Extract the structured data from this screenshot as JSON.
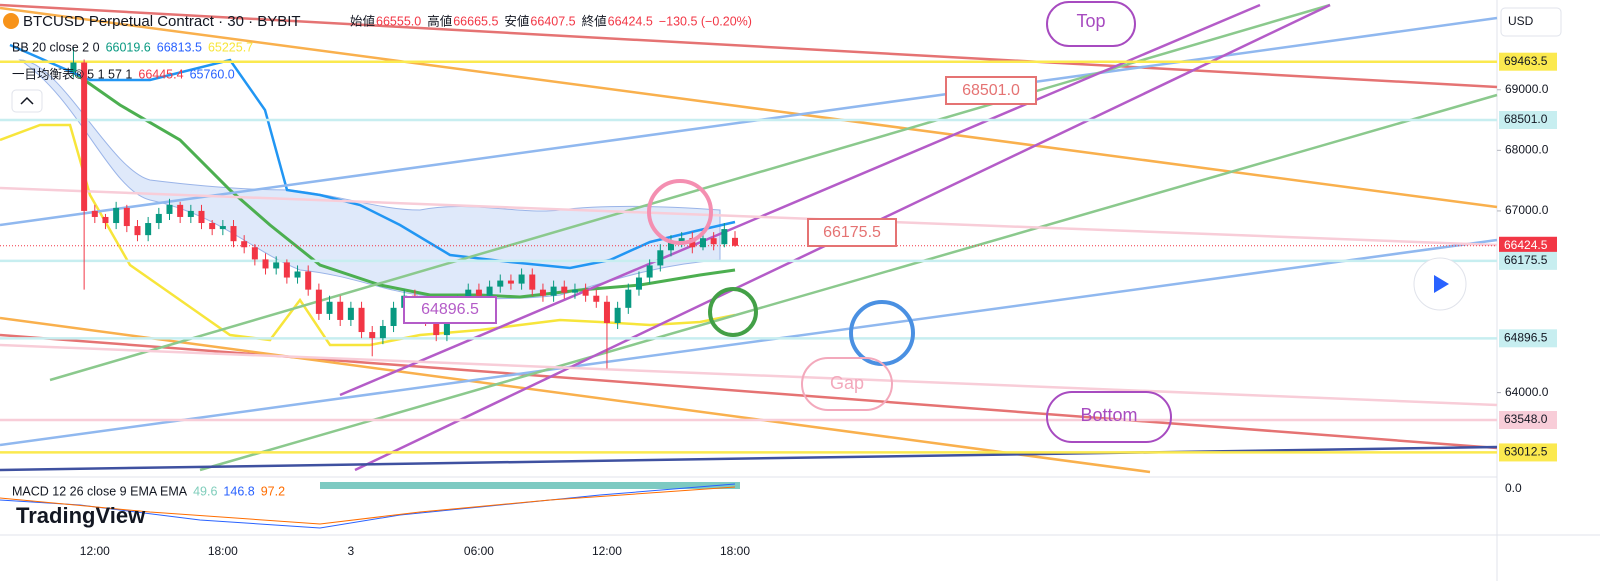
{
  "header": {
    "symbol": "BTCUSD Perpetual Contract · 30 · BYBIT",
    "ohlc": [
      {
        "label": "始値",
        "value": "66555.0"
      },
      {
        "label": "高値",
        "value": "66665.5"
      },
      {
        "label": "安値",
        "value": "66407.5"
      },
      {
        "label": "終値",
        "value": "66424.5"
      }
    ],
    "change": "−130.5 (−0.20%)"
  },
  "indicators": [
    {
      "name": "BB 20 close 2 0",
      "values": [
        "66019.6",
        "66813.5",
        "65225.7"
      ]
    },
    {
      "name": "一目均衡表® 5 1 57 1",
      "values": [
        "66445.4",
        "65760.0"
      ]
    },
    {
      "name": "MACD 12 26 close 9 EMA EMA",
      "values": [
        "49.6",
        "146.8",
        "97.2"
      ]
    }
  ],
  "currency": "USD",
  "macd_zero": "0.0",
  "brand": "TradingView",
  "annotations": {
    "top": "Top",
    "bottom": "Bottom",
    "gap": "Gap",
    "callouts": [
      "68501.0",
      "66175.5",
      "64896.5"
    ]
  },
  "chart_data": {
    "type": "candlestick",
    "categories": [
      null,
      null,
      "12:00",
      null,
      null,
      null,
      null,
      null,
      null,
      null,
      null,
      null,
      null,
      null,
      "18:00",
      null,
      null,
      null,
      null,
      null,
      null,
      null,
      null,
      null,
      null,
      null,
      "3",
      null,
      null,
      null,
      null,
      null,
      null,
      null,
      null,
      null,
      null,
      null,
      "06:00",
      null,
      null,
      null,
      null,
      null,
      null,
      null,
      null,
      null,
      null,
      null,
      "12:00",
      null,
      null,
      null,
      null,
      null,
      null,
      null,
      null,
      null,
      null,
      null,
      "18:00"
    ],
    "open": [
      69300,
      69450,
      67000,
      66900,
      66800,
      67050,
      66750,
      66600,
      66800,
      66950,
      67100,
      66900,
      67000,
      66800,
      66700,
      66750,
      66500,
      66400,
      66200,
      66050,
      66150,
      65900,
      66000,
      65700,
      65300,
      65500,
      65200,
      65400,
      65000,
      64900,
      65100,
      65400,
      65600,
      65300,
      65200,
      64950,
      65400,
      65500,
      65700,
      65600,
      65750,
      65850,
      65800,
      65950,
      65700,
      65600,
      65750,
      65650,
      65700,
      65600,
      65500,
      65150,
      65400,
      65700,
      65900,
      66100,
      66350,
      66500,
      66550,
      66400,
      66550,
      66450,
      66555
    ],
    "high": [
      69700,
      69500,
      67100,
      66950,
      67150,
      67100,
      66850,
      66900,
      67050,
      67200,
      67150,
      67100,
      67100,
      66850,
      66850,
      66850,
      66600,
      66450,
      66300,
      66250,
      66200,
      66100,
      66100,
      65800,
      65600,
      65600,
      65500,
      65500,
      65100,
      65200,
      65500,
      65700,
      65700,
      65400,
      65300,
      65500,
      65600,
      65800,
      65800,
      65850,
      65950,
      65950,
      66050,
      66050,
      65800,
      65850,
      65850,
      65800,
      65800,
      65700,
      65600,
      65500,
      65800,
      66000,
      66200,
      66450,
      66600,
      66650,
      66650,
      66650,
      66650,
      66800,
      66665.5
    ],
    "low": [
      69200,
      65700,
      66800,
      66700,
      66700,
      66650,
      66500,
      66500,
      66700,
      66850,
      66800,
      66800,
      66700,
      66600,
      66600,
      66400,
      66300,
      66100,
      65950,
      65950,
      65800,
      65800,
      65600,
      65200,
      65200,
      65100,
      65100,
      64900,
      64600,
      64800,
      65000,
      65300,
      65200,
      65100,
      64850,
      64850,
      65300,
      65400,
      65500,
      65500,
      65650,
      65700,
      65700,
      65600,
      65500,
      65500,
      65550,
      65550,
      65500,
      65400,
      64400,
      65050,
      65300,
      65600,
      65800,
      66000,
      66250,
      66400,
      66300,
      66350,
      66350,
      66400,
      66407.5
    ],
    "close": [
      69450,
      67000,
      66900,
      66800,
      67050,
      66750,
      66600,
      66800,
      66950,
      67100,
      66900,
      67000,
      66800,
      66700,
      66750,
      66500,
      66400,
      66200,
      66050,
      66150,
      65900,
      66000,
      65700,
      65300,
      65500,
      65200,
      65400,
      65000,
      64900,
      65100,
      65400,
      65600,
      65300,
      65200,
      64950,
      65400,
      65500,
      65700,
      65600,
      65750,
      65850,
      65800,
      65950,
      65700,
      65600,
      65750,
      65650,
      65700,
      65600,
      65500,
      65150,
      65400,
      65700,
      65900,
      66100,
      66350,
      66500,
      66550,
      66400,
      66550,
      66450,
      66700,
      66424.5
    ],
    "up_color": "#089981",
    "down_color": "#f23645",
    "ylim": [
      62640,
      70350
    ],
    "yticks": [
      {
        "value": 64000,
        "label": "64000.0"
      },
      {
        "value": 67000,
        "label": "67000.0"
      },
      {
        "value": 68000,
        "label": "68000.0"
      },
      {
        "value": 69000,
        "label": "69000.0"
      }
    ],
    "price_labels": [
      {
        "value": 69463.5,
        "label": "69463.5",
        "color": "#fbe94f"
      },
      {
        "value": 68501,
        "label": "68501.0",
        "color": "#c7eef0"
      },
      {
        "value": 66424.5,
        "label": "66424.5",
        "color": "#f23645"
      },
      {
        "value": 66175.5,
        "label": "66175.5",
        "color": "#c7eef0"
      },
      {
        "value": 64896.5,
        "label": "64896.5",
        "color": "#c7eef0"
      },
      {
        "value": 63548,
        "label": "63548.0",
        "color": "#f8cdd8"
      },
      {
        "value": 63012.5,
        "label": "63012.5",
        "color": "#fbe94f"
      }
    ]
  }
}
